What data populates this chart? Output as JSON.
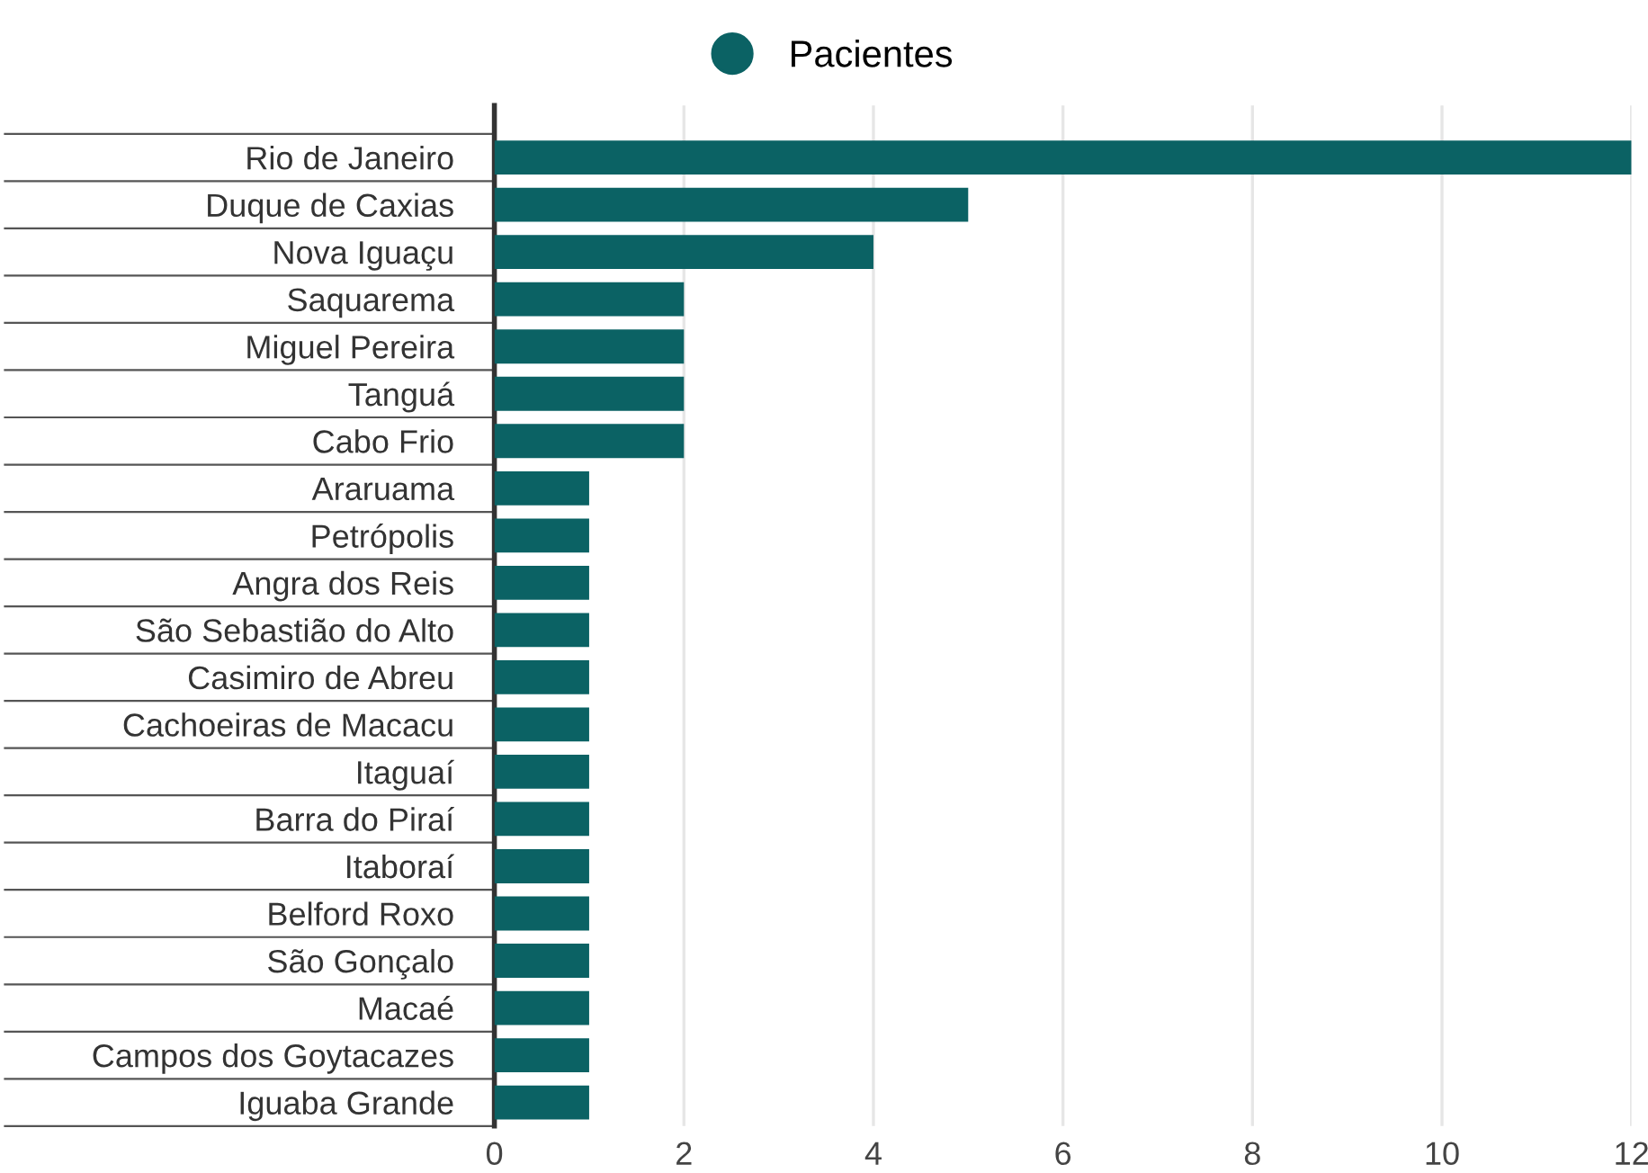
{
  "chart_data": {
    "type": "bar",
    "orientation": "horizontal",
    "categories": [
      "Rio de Janeiro",
      "Duque de Caxias",
      "Nova Iguaçu",
      "Saquarema",
      "Miguel Pereira",
      "Tanguá",
      "Cabo Frio",
      "Araruama",
      "Petrópolis",
      "Angra dos Reis",
      "São Sebastião do Alto",
      "Casimiro de Abreu",
      "Cachoeiras de Macacu",
      "Itaguaí",
      "Barra do Piraí",
      "Itaboraí",
      "Belford Roxo",
      "São Gonçalo",
      "Macaé",
      "Campos dos Goytacazes",
      "Iguaba Grande"
    ],
    "series": [
      {
        "name": "Pacientes",
        "color": "#0b6264",
        "values": [
          12,
          5,
          4,
          2,
          2,
          2,
          2,
          1,
          1,
          1,
          1,
          1,
          1,
          1,
          1,
          1,
          1,
          1,
          1,
          1,
          1
        ]
      }
    ],
    "xlim": [
      0,
      12
    ],
    "xticks": [
      0,
      2,
      4,
      6,
      8,
      10,
      12
    ],
    "grid": "x",
    "legend": "top"
  }
}
